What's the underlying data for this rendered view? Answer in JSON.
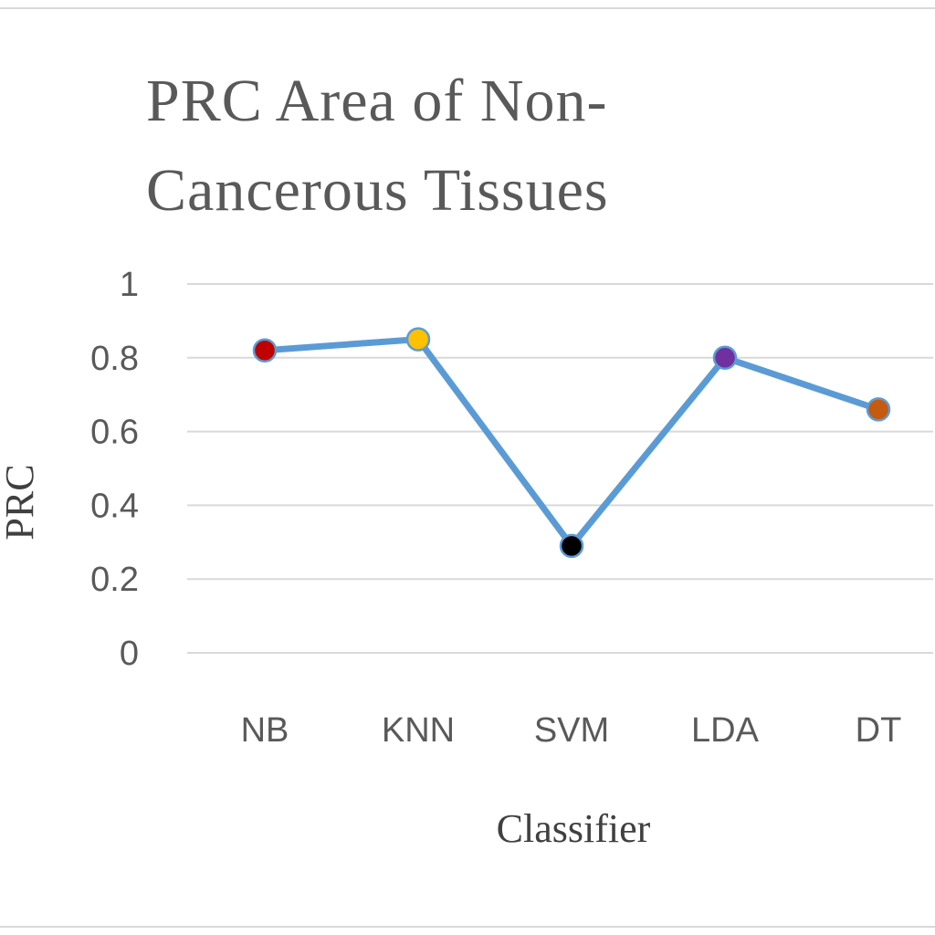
{
  "chart_data": {
    "type": "line",
    "title": "PRC Area of Non-Cancerous Tissues",
    "xlabel": "Classifier",
    "ylabel": "PRC",
    "categories": [
      "NB",
      "KNN",
      "SVM",
      "LDA",
      "DT"
    ],
    "series": [
      {
        "values": [
          0.82,
          0.85,
          0.29,
          0.8,
          0.66
        ],
        "line_color": "#5b9bd5",
        "marker_colors": [
          "#c00000",
          "#ffc000",
          "#000000",
          "#7030a0",
          "#c55a11"
        ]
      }
    ],
    "ylim": [
      0,
      1
    ],
    "yticks": [
      "0",
      "0.2",
      "0.4",
      "0.6",
      "0.8",
      "1"
    ],
    "grid": true,
    "legend": "none"
  }
}
